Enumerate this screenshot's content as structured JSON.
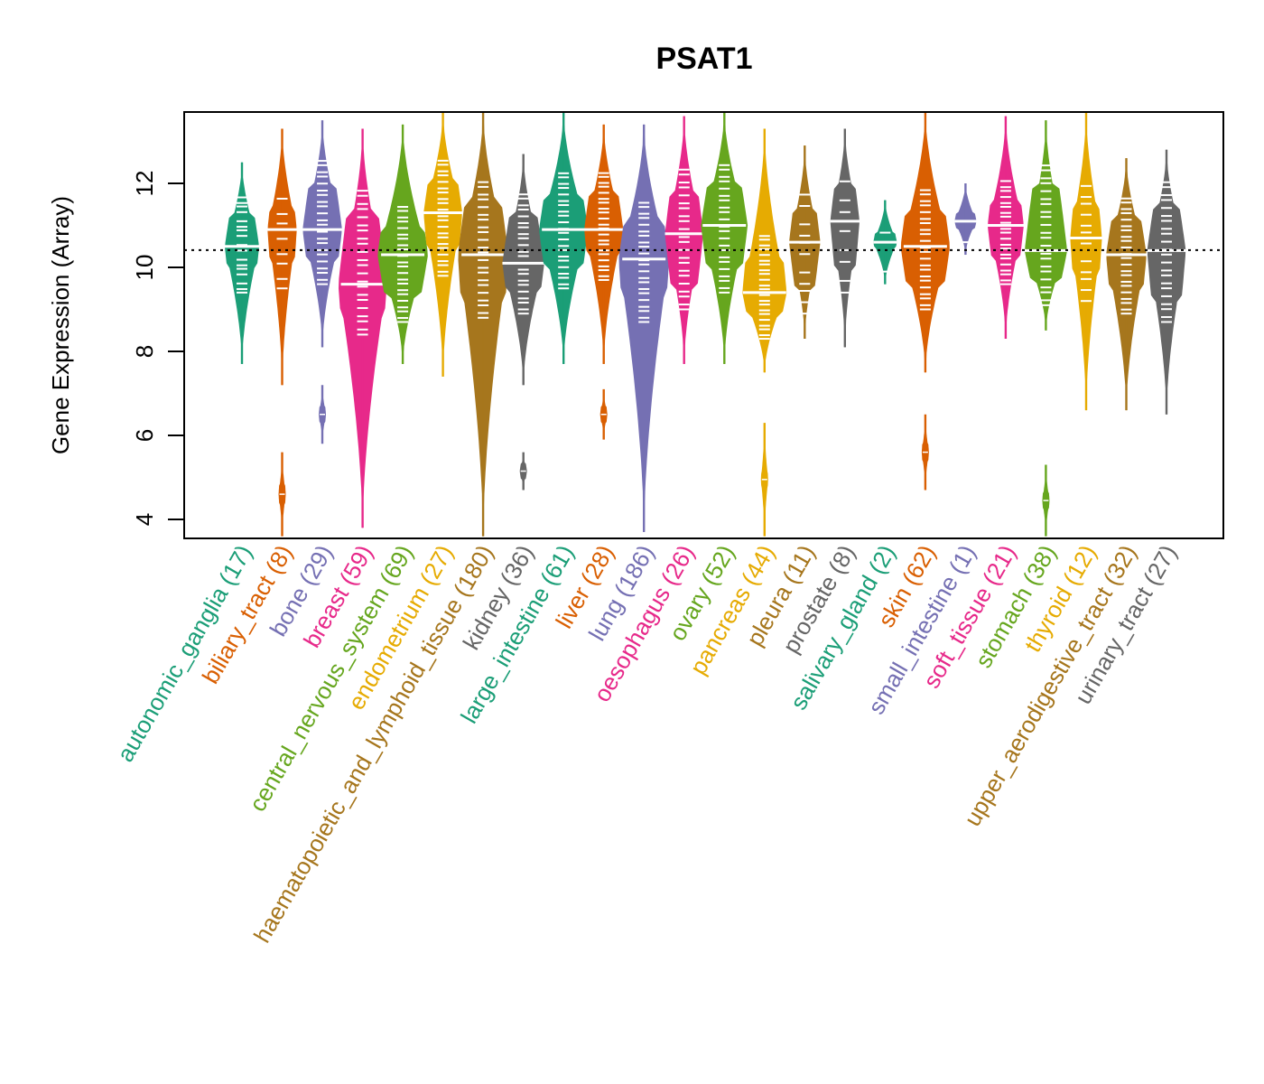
{
  "chart_data": {
    "type": "violin",
    "title": "PSAT1",
    "xlabel": "",
    "ylabel": "Gene Expression (Array)",
    "ylim": [
      3.6,
      13.7
    ],
    "yticks": [
      4,
      6,
      8,
      10,
      12
    ],
    "reference_line": 10.41,
    "grid": false,
    "legend": "none",
    "categories": [
      {
        "name": "autonomic_ganglia",
        "n": 17,
        "label": "autonomic_ganglia (17)",
        "color": "#1B9E77",
        "min": 7.7,
        "max": 12.5,
        "median": 10.5,
        "q_low": 10.0,
        "q_high": 11.2,
        "extra": []
      },
      {
        "name": "biliary_tract",
        "n": 8,
        "label": "biliary_tract (8)",
        "color": "#D95F02",
        "min": 7.2,
        "max": 13.3,
        "median": 10.9,
        "q_low": 10.1,
        "q_high": 11.4,
        "extra": [
          [
            3.6,
            5.6
          ]
        ]
      },
      {
        "name": "bone",
        "n": 29,
        "label": "bone (29)",
        "color": "#7570B3",
        "min": 8.1,
        "max": 13.5,
        "median": 10.9,
        "q_low": 10.2,
        "q_high": 12.0,
        "extra": [
          [
            5.8,
            7.2
          ]
        ]
      },
      {
        "name": "breast",
        "n": 59,
        "label": "breast (59)",
        "color": "#E7298A",
        "min": 3.8,
        "max": 13.3,
        "median": 9.6,
        "q_low": 9.0,
        "q_high": 11.3,
        "extra": []
      },
      {
        "name": "central_nervous_system",
        "n": 69,
        "label": "central_nervous_system (69)",
        "color": "#66A61E",
        "min": 7.7,
        "max": 13.4,
        "median": 10.3,
        "q_low": 9.3,
        "q_high": 10.9,
        "extra": []
      },
      {
        "name": "endometrium",
        "n": 27,
        "label": "endometrium (27)",
        "color": "#E6AB02",
        "min": 7.4,
        "max": 13.7,
        "median": 11.3,
        "q_low": 10.4,
        "q_high": 12.0,
        "extra": []
      },
      {
        "name": "haematopoietic_and_lymphoid_tissue",
        "n": 180,
        "label": "haematopoietic_and_lymphoid_tissue (180)",
        "color": "#A6761D",
        "min": 3.6,
        "max": 13.7,
        "median": 10.3,
        "q_low": 9.4,
        "q_high": 11.5,
        "extra": []
      },
      {
        "name": "kidney",
        "n": 36,
        "label": "kidney (36)",
        "color": "#666666",
        "min": 7.2,
        "max": 12.7,
        "median": 10.1,
        "q_low": 9.5,
        "q_high": 11.2,
        "extra": [
          [
            4.7,
            5.6
          ]
        ]
      },
      {
        "name": "large_intestine",
        "n": 61,
        "label": "large_intestine (61)",
        "color": "#1B9E77",
        "min": 7.7,
        "max": 13.7,
        "median": 10.9,
        "q_low": 10.1,
        "q_high": 11.7,
        "extra": []
      },
      {
        "name": "liver",
        "n": 28,
        "label": "liver (28)",
        "color": "#D95F02",
        "min": 7.7,
        "max": 13.4,
        "median": 10.9,
        "q_low": 10.3,
        "q_high": 11.7,
        "extra": [
          [
            5.9,
            7.1
          ]
        ]
      },
      {
        "name": "lung",
        "n": 186,
        "label": "lung (186)",
        "color": "#7570B3",
        "min": 3.7,
        "max": 13.4,
        "median": 10.2,
        "q_low": 9.3,
        "q_high": 11.0,
        "extra": []
      },
      {
        "name": "oesophagus",
        "n": 26,
        "label": "oesophagus (26)",
        "color": "#E7298A",
        "min": 7.7,
        "max": 13.6,
        "median": 10.8,
        "q_low": 9.6,
        "q_high": 11.8,
        "extra": []
      },
      {
        "name": "ovary",
        "n": 52,
        "label": "ovary (52)",
        "color": "#66A61E",
        "min": 7.7,
        "max": 13.7,
        "median": 11.0,
        "q_low": 10.0,
        "q_high": 11.9,
        "extra": []
      },
      {
        "name": "pancreas",
        "n": 44,
        "label": "pancreas (44)",
        "color": "#E6AB02",
        "min": 7.5,
        "max": 13.3,
        "median": 9.4,
        "q_low": 8.9,
        "q_high": 10.2,
        "extra": [
          [
            3.6,
            6.3
          ]
        ]
      },
      {
        "name": "pleura",
        "n": 11,
        "label": "pleura (11)",
        "color": "#A6761D",
        "min": 8.3,
        "max": 12.9,
        "median": 10.6,
        "q_low": 9.5,
        "q_high": 11.3,
        "extra": []
      },
      {
        "name": "prostate",
        "n": 8,
        "label": "prostate (8)",
        "color": "#666666",
        "min": 8.1,
        "max": 13.3,
        "median": 11.1,
        "q_low": 10.0,
        "q_high": 11.9,
        "extra": []
      },
      {
        "name": "salivary_gland",
        "n": 2,
        "label": "salivary_gland (2)",
        "color": "#1B9E77",
        "min": 9.6,
        "max": 11.6,
        "median": 10.6,
        "q_low": 10.5,
        "q_high": 10.8,
        "extra": []
      },
      {
        "name": "skin",
        "n": 62,
        "label": "skin (62)",
        "color": "#D95F02",
        "min": 7.5,
        "max": 13.7,
        "median": 10.5,
        "q_low": 9.6,
        "q_high": 11.3,
        "extra": [
          [
            4.7,
            6.5
          ]
        ]
      },
      {
        "name": "small_intestine",
        "n": 1,
        "label": "small_intestine (1)",
        "color": "#7570B3",
        "min": 10.3,
        "max": 12.0,
        "median": 11.1,
        "q_low": 10.9,
        "q_high": 11.3,
        "extra": []
      },
      {
        "name": "soft_tissue",
        "n": 21,
        "label": "soft_tissue (21)",
        "color": "#E7298A",
        "min": 8.3,
        "max": 13.6,
        "median": 11.0,
        "q_low": 10.2,
        "q_high": 11.6,
        "extra": []
      },
      {
        "name": "stomach",
        "n": 38,
        "label": "stomach (38)",
        "color": "#66A61E",
        "min": 8.5,
        "max": 13.5,
        "median": 10.4,
        "q_low": 9.7,
        "q_high": 11.9,
        "extra": [
          [
            3.6,
            5.3
          ]
        ]
      },
      {
        "name": "thyroid",
        "n": 12,
        "label": "thyroid (12)",
        "color": "#E6AB02",
        "min": 6.6,
        "max": 13.7,
        "median": 10.7,
        "q_low": 9.8,
        "q_high": 11.5,
        "extra": []
      },
      {
        "name": "upper_aerodigestive_tract",
        "n": 32,
        "label": "upper_aerodigestive_tract (32)",
        "color": "#A6761D",
        "min": 6.6,
        "max": 12.6,
        "median": 10.3,
        "q_low": 9.5,
        "q_high": 11.1,
        "extra": []
      },
      {
        "name": "urinary_tract",
        "n": 27,
        "label": "urinary_tract (27)",
        "color": "#666666",
        "min": 6.5,
        "max": 12.8,
        "median": 10.4,
        "q_low": 9.3,
        "q_high": 11.5,
        "extra": []
      }
    ]
  }
}
